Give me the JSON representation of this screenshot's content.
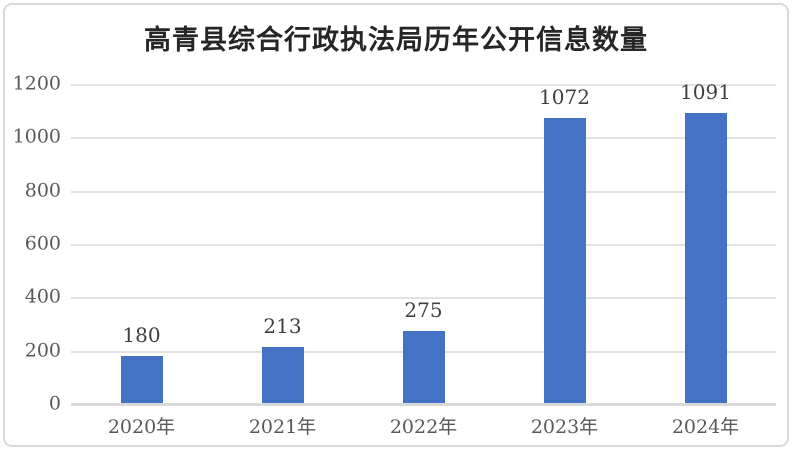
{
  "chart_data": {
    "type": "bar",
    "title": "高青县综合行政执法局历年公开信息数量",
    "categories": [
      "2020年",
      "2021年",
      "2022年",
      "2023年",
      "2024年"
    ],
    "values": [
      180,
      213,
      275,
      1072,
      1091
    ],
    "data_labels": [
      "180",
      "213",
      "275",
      "1072",
      "1091"
    ],
    "xlabel": "",
    "ylabel": "",
    "ylim": [
      0,
      1200
    ],
    "yticks": [
      0,
      200,
      400,
      600,
      800,
      1000,
      1200
    ],
    "grid": "horizontal",
    "legend_position": "none",
    "colors": {
      "bar": "#4472c4",
      "gridline": "#e2e2e2",
      "axis_line": "#d9d9d9",
      "tick_label": "#595959",
      "data_label": "#404040",
      "title": "#262626",
      "frame_border": "#d9d9d9",
      "background": "#ffffff"
    }
  }
}
